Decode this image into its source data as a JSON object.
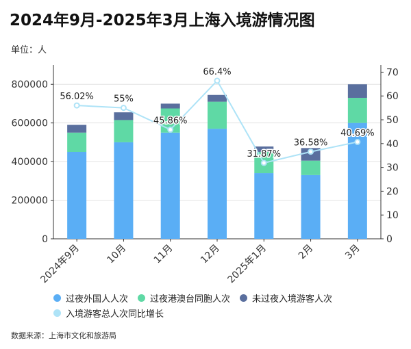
{
  "header": {
    "title": "2024年9月-2025年3月上海入境游情况图",
    "unit": "单位：人",
    "source": "数据来源：上海市文化和旅游局"
  },
  "colors": {
    "foreign": "#5aaef5",
    "hkmt": "#5fd9a5",
    "nonovernight": "#5a6f9e",
    "growth": "#aee3f7"
  },
  "chart_data": {
    "type": "bar",
    "stacked": true,
    "categories": [
      "2024年9月",
      "10月",
      "11月",
      "12月",
      "2025年1月",
      "2月",
      "3月"
    ],
    "series": [
      {
        "name": "过夜外国人人次",
        "values": [
          450000,
          500000,
          550000,
          570000,
          340000,
          330000,
          600000
        ]
      },
      {
        "name": "过夜港澳台同胞人次",
        "values": [
          100000,
          115000,
          125000,
          140000,
          110000,
          75000,
          130000
        ]
      },
      {
        "name": "未过夜入境游客人次",
        "values": [
          40000,
          40000,
          25000,
          35000,
          28000,
          65000,
          70000
        ]
      }
    ],
    "line": {
      "name": "入境游客总人次同比增长",
      "axis": "right",
      "values": [
        56.02,
        55,
        45.86,
        66.4,
        31.87,
        36.58,
        40.69
      ],
      "labels": [
        "56.02%",
        "55%",
        "45.86%",
        "66.4%",
        "31.87%",
        "36.58%",
        "40.69%"
      ]
    },
    "y_left": {
      "min": 0,
      "max": 900000,
      "ticks": [
        "0",
        "200000",
        "400000",
        "600000",
        "800000"
      ],
      "tick_values": [
        0,
        200000,
        400000,
        600000,
        800000
      ]
    },
    "y_right": {
      "min": 0,
      "max": 73,
      "ticks": [
        "0",
        "10",
        "20",
        "30",
        "40",
        "50",
        "60",
        "70"
      ],
      "tick_values": [
        0,
        10,
        20,
        30,
        40,
        50,
        60,
        70
      ]
    },
    "legend": [
      "过夜外国人人次",
      "过夜港澳台同胞人次",
      "未过夜入境游客人次",
      "入境游客总人次同比增长"
    ],
    "grid": true
  }
}
